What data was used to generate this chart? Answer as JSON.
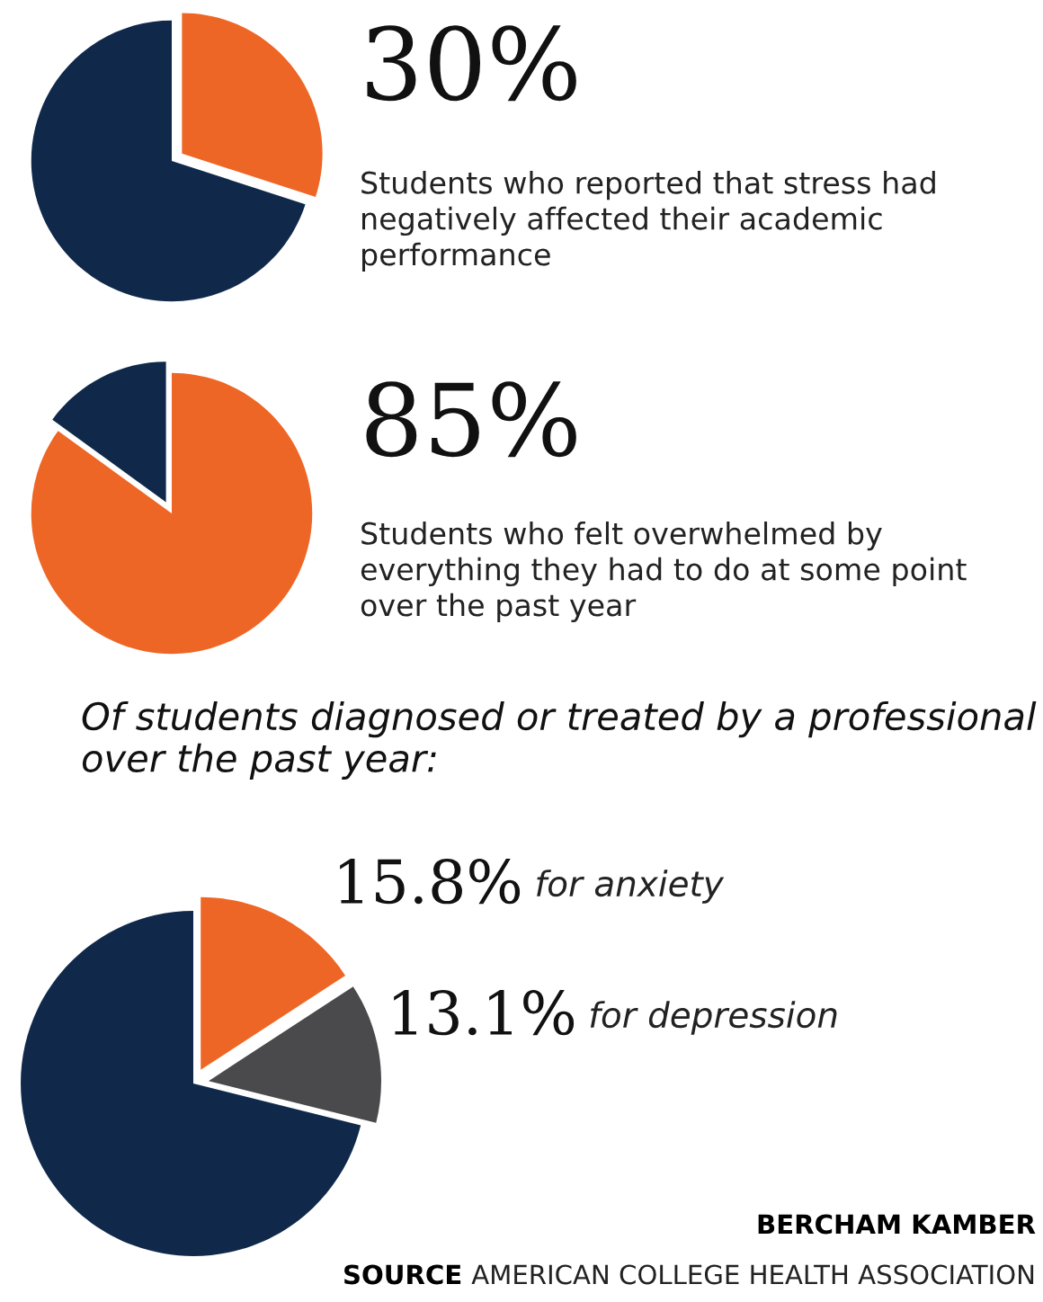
{
  "chart_data": [
    {
      "type": "pie",
      "categories": [
        "Students who reported that stress had negatively affected their academic performance",
        null
      ],
      "values": [
        30,
        70
      ],
      "colors": [
        "#ee6625",
        "#10294a"
      ],
      "value_labels": [
        "30%",
        null
      ]
    },
    {
      "type": "pie",
      "categories": [
        "Students who felt overwhelmed by everything they had to do at some point over the past year",
        null
      ],
      "values": [
        85,
        15
      ],
      "colors": [
        "#ee6625",
        "#10294a"
      ],
      "value_labels": [
        "85%",
        null
      ]
    },
    {
      "type": "pie",
      "title": "Of students diagnosed or treated by a professional over the past year:",
      "categories": [
        "for anxiety",
        "for depression",
        null
      ],
      "values": [
        15.8,
        13.1,
        71.1
      ],
      "colors": [
        "#ee6625",
        "#4a4a4c",
        "#10294a"
      ],
      "value_labels": [
        "15.8%",
        "13.1%",
        null
      ],
      "annotations": [
        "BERCHAM KAMBER",
        "SOURCE",
        "AMERICAN COLLEGE HEALTH ASSOCIATION"
      ]
    }
  ]
}
